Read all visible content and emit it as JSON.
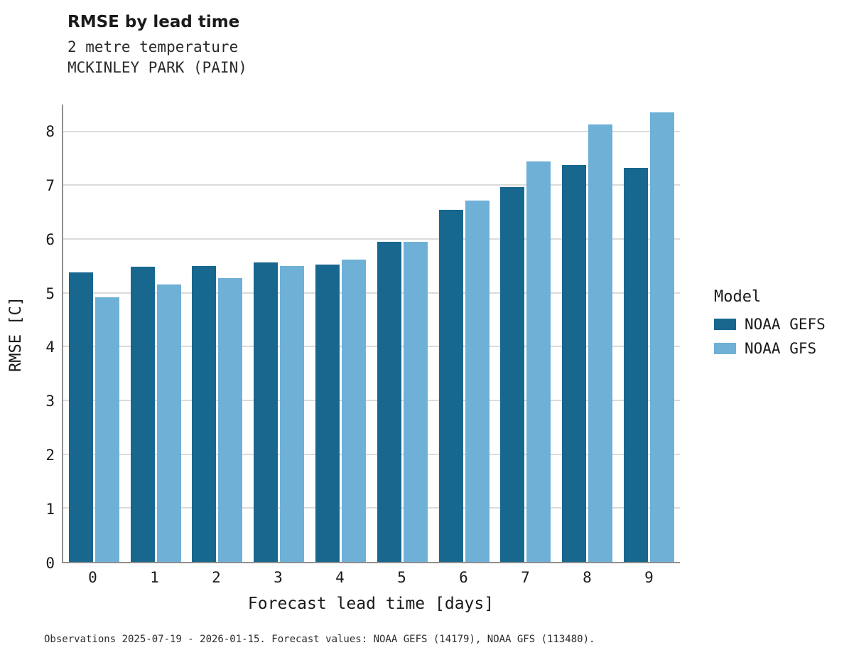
{
  "header": {
    "title": "RMSE by lead time",
    "subtitle": "2 metre temperature",
    "station": "MCKINLEY PARK (PAIN)"
  },
  "legend": {
    "title": "Model",
    "entries": [
      {
        "label": "NOAA GEFS",
        "color": "#17678f"
      },
      {
        "label": "NOAA GFS",
        "color": "#6fb0d7"
      }
    ]
  },
  "caption": "Observations 2025-07-19 - 2026-01-15. Forecast values: NOAA GEFS (14179), NOAA GFS (113480).",
  "chart_data": {
    "type": "bar",
    "title": "RMSE by lead time",
    "subtitle": "2 metre temperature",
    "station": "MCKINLEY PARK (PAIN)",
    "xlabel": "Forecast lead time [days]",
    "ylabel": "RMSE [C]",
    "categories": [
      0,
      1,
      2,
      3,
      4,
      5,
      6,
      7,
      8,
      9
    ],
    "series": [
      {
        "name": "NOAA GEFS",
        "color": "#17678f",
        "values": [
          5.38,
          5.48,
          5.5,
          5.57,
          5.52,
          5.95,
          6.55,
          6.97,
          7.37,
          7.33
        ]
      },
      {
        "name": "NOAA GFS",
        "color": "#6fb0d7",
        "values": [
          4.92,
          5.15,
          5.28,
          5.5,
          5.62,
          5.95,
          6.72,
          7.44,
          8.13,
          8.35
        ]
      }
    ],
    "ylim": [
      0,
      8.5
    ],
    "yticks": [
      0,
      1,
      2,
      3,
      4,
      5,
      6,
      7,
      8
    ],
    "grid": true,
    "legend_position": "right"
  }
}
